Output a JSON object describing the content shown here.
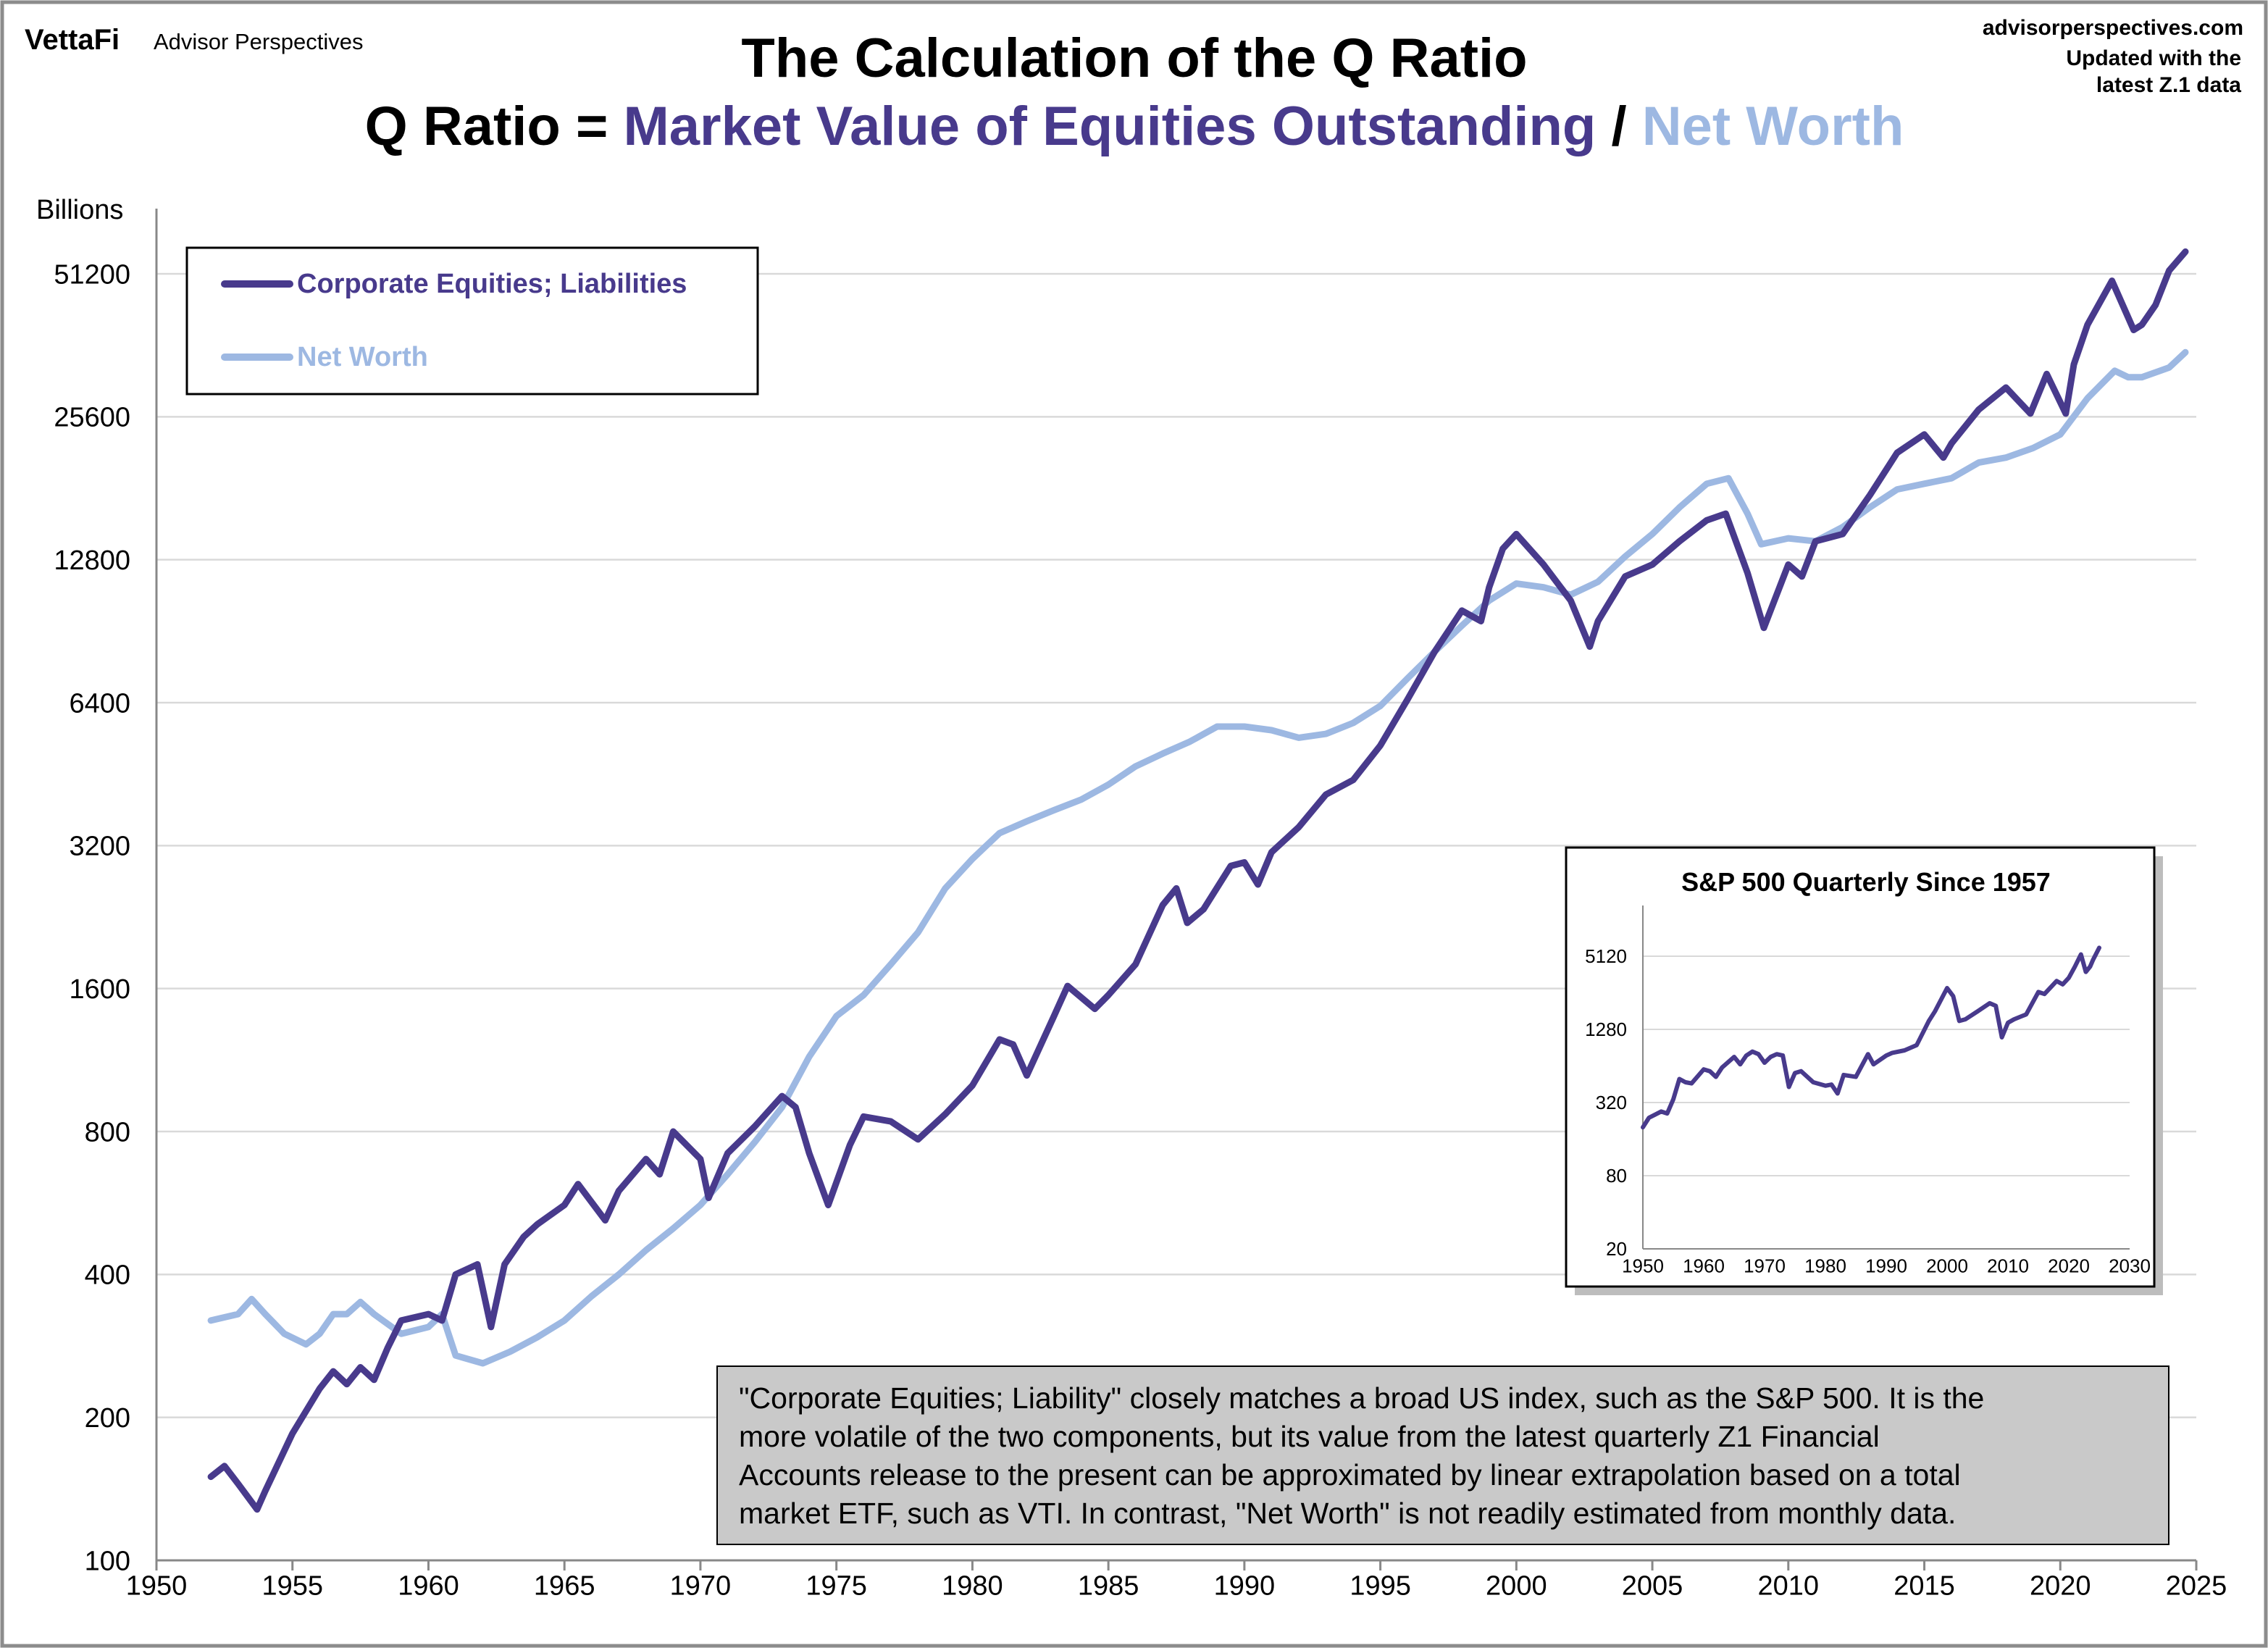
{
  "header": {
    "brand_logo": "VettaFi",
    "brand_name": "Advisor Perspectives",
    "site": "advisorperspectives.com",
    "update_line1": "Updated with the",
    "update_line2": "latest Z.1 data"
  },
  "title": {
    "line1": "The Calculation of the Q Ratio",
    "prefix": "Q Ratio = ",
    "numerator": "Market Value of Equities Outstanding",
    "divider": " / ",
    "denominator": "Net Worth"
  },
  "colors": {
    "equities": "#483a8c",
    "net_worth": "#9db8e2",
    "grid": "#d9d9d9",
    "note_bg": "#c9c9c9"
  },
  "note": {
    "lines": [
      "\"Corporate Equities; Liability\" closely matches a broad US index, such as the S&P 500. It is the",
      "more volatile of the two components, but its value from the latest quarterly Z1 Financial",
      "Accounts release to the present can be approximated by linear extrapolation based on a total",
      "market ETF, such as VTI.  In contrast, \"Net Worth\" is not readily estimated from monthly data."
    ]
  },
  "chart_data": [
    {
      "type": "line",
      "title": "",
      "ylabel": "Billions",
      "xlabel": "",
      "yscale": "log2",
      "xlim": [
        1950,
        2025
      ],
      "ylim": [
        100,
        51200
      ],
      "xticks": [
        "1950",
        "1955",
        "1960",
        "1965",
        "1970",
        "1975",
        "1980",
        "1985",
        "1990",
        "1995",
        "2000",
        "2005",
        "2010",
        "2015",
        "2020",
        "2025"
      ],
      "yticks": [
        "100",
        "200",
        "400",
        "800",
        "1600",
        "3200",
        "6400",
        "12800",
        "25600",
        "51200"
      ],
      "grid": true,
      "legend_position": "top-left",
      "series": [
        {
          "name": "Corporate Equities; Liabilities",
          "color": "#483a8c",
          "x": [
            1952,
            1952.5,
            1953,
            1953.7,
            1954,
            1955,
            1956,
            1956.5,
            1957,
            1957.5,
            1958,
            1958.5,
            1959,
            1960,
            1960.5,
            1961,
            1961.8,
            1962.3,
            1962.8,
            1963.5,
            1964,
            1965,
            1965.5,
            1966.5,
            1967,
            1968,
            1968.5,
            1969,
            1970,
            1970.3,
            1971,
            1972,
            1973,
            1973.5,
            1974,
            1974.7,
            1975.5,
            1976,
            1977,
            1978,
            1979,
            1980,
            1981,
            1981.5,
            1982,
            1983,
            1983.5,
            1984.5,
            1985,
            1986,
            1987,
            1987.5,
            1987.9,
            1988.5,
            1989.5,
            1990,
            1990.5,
            1991,
            1992,
            1993,
            1994,
            1995,
            1996,
            1997,
            1998,
            1998.7,
            1999,
            1999.5,
            2000,
            2001,
            2002,
            2002.7,
            2003,
            2004,
            2005,
            2006,
            2007,
            2007.7,
            2008.5,
            2009.1,
            2010,
            2010.5,
            2011,
            2012,
            2013,
            2014,
            2015,
            2015.7,
            2016,
            2017,
            2018,
            2018.9,
            2019.5,
            2020.2,
            2020.5,
            2021,
            2021.9,
            2022.7,
            2023,
            2023.5,
            2024,
            2024.6
          ],
          "values": [
            150,
            158,
            145,
            128,
            140,
            185,
            230,
            250,
            235,
            255,
            240,
            280,
            320,
            330,
            320,
            400,
            420,
            310,
            420,
            480,
            510,
            560,
            620,
            520,
            600,
            700,
            650,
            800,
            700,
            580,
            720,
            820,
            950,
            900,
            720,
            560,
            750,
            860,
            840,
            770,
            870,
            1000,
            1250,
            1220,
            1050,
            1400,
            1620,
            1450,
            1550,
            1800,
            2400,
            2600,
            2200,
            2350,
            2900,
            2950,
            2650,
            3100,
            3500,
            4100,
            4400,
            5200,
            6500,
            8200,
            10000,
            9500,
            11200,
            13500,
            14500,
            12500,
            10500,
            8400,
            9500,
            11800,
            12500,
            14000,
            15500,
            16000,
            12000,
            9200,
            12500,
            11800,
            14000,
            14500,
            17500,
            21500,
            23500,
            21000,
            22500,
            26500,
            29500,
            26000,
            31500,
            26000,
            33000,
            40000,
            49500,
            39000,
            40000,
            44000,
            52000,
            57000
          ]
        },
        {
          "name": "Net Worth",
          "color": "#9db8e2",
          "x": [
            1952,
            1953,
            1953.5,
            1954,
            1954.7,
            1955.5,
            1956,
            1956.5,
            1957,
            1957.5,
            1958,
            1959,
            1960,
            1960.5,
            1961,
            1962,
            1963,
            1964,
            1965,
            1966,
            1967,
            1968,
            1969,
            1970,
            1971,
            1972,
            1973,
            1974,
            1975,
            1976,
            1977,
            1978,
            1979,
            1980,
            1981,
            1982,
            1983,
            1984,
            1985,
            1986,
            1987,
            1988,
            1989,
            1990,
            1991,
            1992,
            1993,
            1994,
            1995,
            1996,
            1997,
            1998,
            1999,
            2000,
            2001,
            2002,
            2003,
            2004,
            2005,
            2006,
            2007,
            2007.8,
            2008.5,
            2009,
            2010,
            2011,
            2012,
            2013,
            2014,
            2015,
            2016,
            2017,
            2018,
            2019,
            2020,
            2021,
            2022,
            2022.5,
            2023,
            2024,
            2024.6
          ],
          "values": [
            320,
            330,
            355,
            330,
            300,
            285,
            300,
            330,
            330,
            350,
            330,
            300,
            310,
            330,
            270,
            260,
            275,
            295,
            320,
            360,
            400,
            450,
            500,
            560,
            650,
            760,
            900,
            1150,
            1400,
            1550,
            1800,
            2100,
            2600,
            3000,
            3400,
            3600,
            3800,
            4000,
            4300,
            4700,
            5000,
            5300,
            5700,
            5700,
            5600,
            5400,
            5500,
            5800,
            6300,
            7200,
            8200,
            9300,
            10500,
            11400,
            11200,
            10800,
            11500,
            13000,
            14500,
            16500,
            18500,
            19000,
            16000,
            13800,
            14200,
            14000,
            15000,
            16500,
            18000,
            18500,
            19000,
            20500,
            21000,
            22000,
            23500,
            28000,
            32000,
            31000,
            31000,
            32500,
            35000
          ]
        }
      ]
    },
    {
      "type": "line",
      "title": "S&P 500 Quarterly Since 1957",
      "yscale": "log4",
      "xlim": [
        1950,
        2030
      ],
      "ylim": [
        20,
        5120
      ],
      "xticks": [
        "1950",
        "1960",
        "1970",
        "1980",
        "1990",
        "2000",
        "2010",
        "2020",
        "2030"
      ],
      "yticks": [
        "20",
        "80",
        "320",
        "1280",
        "5120"
      ],
      "grid": true,
      "series": [
        {
          "color": "#483a8c",
          "x": [
            1950,
            1951,
            1953,
            1954,
            1955,
            1956,
            1957,
            1958,
            1960,
            1961,
            1962,
            1963,
            1965,
            1966,
            1967,
            1968,
            1969,
            1970,
            1971,
            1972,
            1973,
            1974,
            1975,
            1976,
            1978,
            1980,
            1981,
            1982,
            1983,
            1985,
            1987,
            1987.9,
            1990,
            1991,
            1993,
            1995,
            1997,
            1998,
            2000,
            2001,
            2002,
            2003,
            2005,
            2007,
            2008,
            2009,
            2010,
            2011,
            2013,
            2015,
            2016,
            2018,
            2019,
            2020,
            2021,
            2022,
            2022.8,
            2023.5,
            2024,
            2025
          ],
          "values": [
            200,
            240,
            270,
            260,
            340,
            500,
            470,
            460,
            600,
            580,
            520,
            620,
            760,
            660,
            780,
            840,
            800,
            680,
            760,
            800,
            780,
            430,
            560,
            580,
            470,
            440,
            450,
            380,
            540,
            520,
            800,
            660,
            780,
            820,
            860,
            950,
            1500,
            1800,
            2800,
            2400,
            1500,
            1550,
            1800,
            2100,
            2000,
            1100,
            1450,
            1550,
            1700,
            2600,
            2500,
            3200,
            3000,
            3400,
            4200,
            5300,
            3800,
            4200,
            4800,
            6000
          ]
        }
      ]
    }
  ]
}
